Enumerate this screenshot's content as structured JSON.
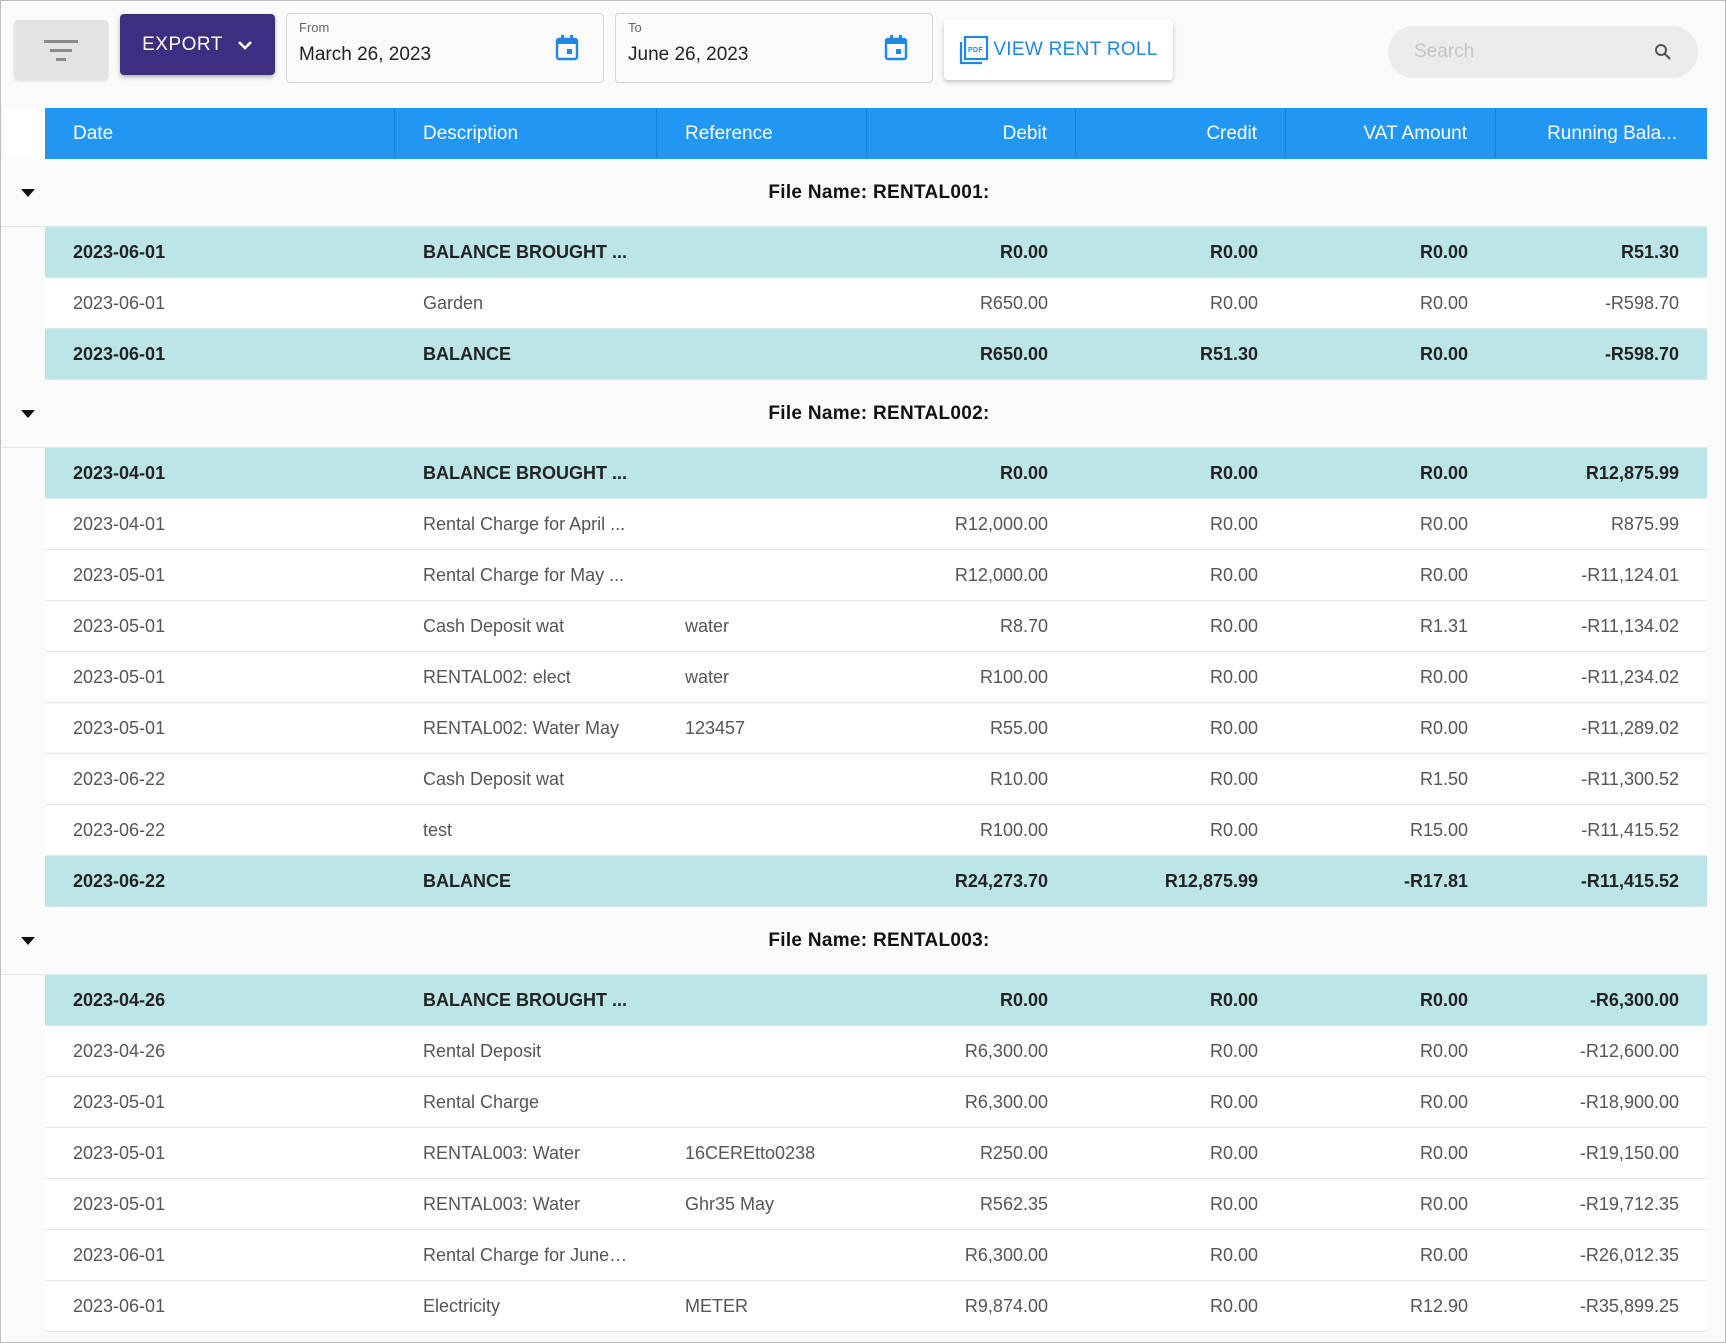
{
  "toolbar": {
    "export_label": "EXPORT",
    "from_label": "From",
    "from_value": "March 26, 2023",
    "to_label": "To",
    "to_value": "June 26, 2023",
    "rent_roll_label": "VIEW RENT ROLL",
    "search_placeholder": "Search"
  },
  "colors": {
    "export_bg": "#3d2e82",
    "header_bg": "#2196f3",
    "summary_row_bg": "#bce5e8",
    "link_blue": "#1e88e5"
  },
  "table": {
    "columns": [
      "Date",
      "Description",
      "Reference",
      "Debit",
      "Credit",
      "VAT Amount",
      "Running Bala..."
    ],
    "groups": [
      {
        "title": "File Name: RENTAL001:",
        "rows": [
          {
            "type": "sum",
            "date": "2023-06-01",
            "desc": "BALANCE BROUGHT ...",
            "ref": "",
            "debit": "R0.00",
            "credit": "R0.00",
            "vat": "R0.00",
            "run": "R51.30"
          },
          {
            "type": "normal",
            "date": "2023-06-01",
            "desc": "Garden",
            "ref": "",
            "debit": "R650.00",
            "credit": "R0.00",
            "vat": "R0.00",
            "run": "-R598.70"
          },
          {
            "type": "sum",
            "date": "2023-06-01",
            "desc": "BALANCE",
            "ref": "",
            "debit": "R650.00",
            "credit": "R51.30",
            "vat": "R0.00",
            "run": "-R598.70"
          }
        ]
      },
      {
        "title": "File Name: RENTAL002:",
        "rows": [
          {
            "type": "sum",
            "date": "2023-04-01",
            "desc": "BALANCE BROUGHT ...",
            "ref": "",
            "debit": "R0.00",
            "credit": "R0.00",
            "vat": "R0.00",
            "run": "R12,875.99"
          },
          {
            "type": "normal",
            "date": "2023-04-01",
            "desc": "Rental Charge for April ...",
            "ref": "",
            "debit": "R12,000.00",
            "credit": "R0.00",
            "vat": "R0.00",
            "run": "R875.99"
          },
          {
            "type": "normal",
            "date": "2023-05-01",
            "desc": "Rental Charge for May ...",
            "ref": "",
            "debit": "R12,000.00",
            "credit": "R0.00",
            "vat": "R0.00",
            "run": "-R11,124.01"
          },
          {
            "type": "normal",
            "date": "2023-05-01",
            "desc": "Cash Deposit wat",
            "ref": "water",
            "debit": "R8.70",
            "credit": "R0.00",
            "vat": "R1.31",
            "run": "-R11,134.02"
          },
          {
            "type": "normal",
            "date": "2023-05-01",
            "desc": "RENTAL002: elect",
            "ref": "water",
            "debit": "R100.00",
            "credit": "R0.00",
            "vat": "R0.00",
            "run": "-R11,234.02"
          },
          {
            "type": "normal",
            "date": "2023-05-01",
            "desc": "RENTAL002: Water May",
            "ref": "123457",
            "debit": "R55.00",
            "credit": "R0.00",
            "vat": "R0.00",
            "run": "-R11,289.02"
          },
          {
            "type": "normal",
            "date": "2023-06-22",
            "desc": "Cash Deposit wat",
            "ref": "",
            "debit": "R10.00",
            "credit": "R0.00",
            "vat": "R1.50",
            "run": "-R11,300.52"
          },
          {
            "type": "normal",
            "date": "2023-06-22",
            "desc": "test",
            "ref": "",
            "debit": "R100.00",
            "credit": "R0.00",
            "vat": "R15.00",
            "run": "-R11,415.52"
          },
          {
            "type": "sum",
            "date": "2023-06-22",
            "desc": "BALANCE",
            "ref": "",
            "debit": "R24,273.70",
            "credit": "R12,875.99",
            "vat": "-R17.81",
            "run": "-R11,415.52"
          }
        ]
      },
      {
        "title": "File Name: RENTAL003:",
        "rows": [
          {
            "type": "sum",
            "date": "2023-04-26",
            "desc": "BALANCE BROUGHT ...",
            "ref": "",
            "debit": "R0.00",
            "credit": "R0.00",
            "vat": "R0.00",
            "run": "-R6,300.00"
          },
          {
            "type": "normal",
            "date": "2023-04-26",
            "desc": "Rental Deposit",
            "ref": "",
            "debit": "R6,300.00",
            "credit": "R0.00",
            "vat": "R0.00",
            "run": "-R12,600.00"
          },
          {
            "type": "normal",
            "date": "2023-05-01",
            "desc": "Rental Charge",
            "ref": "",
            "debit": "R6,300.00",
            "credit": "R0.00",
            "vat": "R0.00",
            "run": "-R18,900.00"
          },
          {
            "type": "normal",
            "date": "2023-05-01",
            "desc": "RENTAL003: Water",
            "ref": "16CEREtto0238",
            "debit": "R250.00",
            "credit": "R0.00",
            "vat": "R0.00",
            "run": "-R19,150.00"
          },
          {
            "type": "normal",
            "date": "2023-05-01",
            "desc": "RENTAL003: Water",
            "ref": "Ghr35 May",
            "debit": "R562.35",
            "credit": "R0.00",
            "vat": "R0.00",
            "run": "-R19,712.35"
          },
          {
            "type": "normal",
            "date": "2023-06-01",
            "desc": "Rental Charge for June ...",
            "ref": "",
            "debit": "R6,300.00",
            "credit": "R0.00",
            "vat": "R0.00",
            "run": "-R26,012.35"
          },
          {
            "type": "normal",
            "date": "2023-06-01",
            "desc": "Electricity",
            "ref": "METER",
            "debit": "R9,874.00",
            "credit": "R0.00",
            "vat": "R12.90",
            "run": "-R35,899.25"
          }
        ]
      }
    ]
  }
}
